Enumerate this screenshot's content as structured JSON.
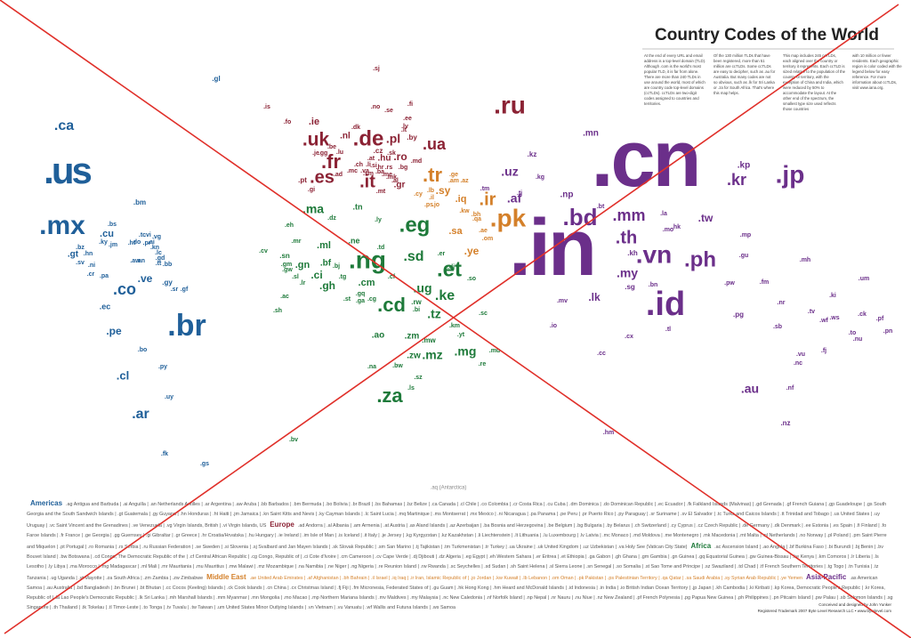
{
  "title": "Country Codes of the World",
  "intro": [
    "At the end of every URL and email address is a top-level domain (TLD). Although .com is the world's most popular TLD, it is far from alone. There are more than 240 TLDs in use around the world, most of which are country code top-level domains (ccTLDs). ccTLDs are two-digit codes assigned to countries and territories.",
    "Of the 130 million TLDs that have been registered, more than 51 million are ccTLDs. Some ccTLDs are easy to decipher, such as .au for Australia. But many codes are not so obvious, such as .lk for Sri Lanka or .za for South Africa. That's where this map helps.",
    "This map includes 245 ccTLDs, each aligned over the country or territory it represents. Each ccTLD is sized relative to the population of the country or territory, with the exception of China and India, which were reduced by 50% to accommodate the layout. At the other end of the spectrum, the smallest type size used reflects those countries",
    "with 10 million or fewer residents. Each geographic region is color coded with the legend below for easy reference. For more information about ccTLDs, visit www.iana.org."
  ],
  "antarctica": ".aq (Antarctica)",
  "regions": [
    {
      "name": "Americas",
      "color": "#1f5f99",
      "codes": [
        ".ca",
        ".us",
        ".mx",
        ".bm",
        ".bs",
        ".cu",
        ".ky",
        ".tc",
        ".vi",
        ".vg",
        ".jm",
        ".ht",
        ".do",
        ".pr",
        ".ai",
        ".kn",
        ".bz",
        ".gt",
        ".hn",
        ".sv",
        ".ni",
        ".cr",
        ".pa",
        ".aw",
        ".an",
        ".tt",
        ".lc",
        ".gd",
        ".bb",
        ".co",
        ".ve",
        ".gy",
        ".sr",
        ".gf",
        ".ec",
        ".br",
        ".pe",
        ".bo",
        ".py",
        ".cl",
        ".uy",
        ".ar",
        ".fk",
        ".gs",
        ".gl"
      ],
      "legend": ".ag Antigua and Barbuda | .ai Anguilla | .an Netherlands Antilles | .ar Argentina | .aw Aruba | .bb Barbados | .bm Bermuda | .bo Bolivia | .br Brazil | .bs Bahamas | .bz Belize | .ca Canada | .cl Chile | .co Colombia | .cr Costa Rica | .cu Cuba | .dm Dominica | .do Dominican Republic | .ec Ecuador | .fk Falkland Islands (Malvinas) | .gd Grenada | .gf French Guiana | .gp Guadeloupe | .gs South Georgia and the South Sandwich Islands | .gt Guatemala | .gy Guyana | .hn Honduras | .ht Haiti | .jm Jamaica | .kn Saint Kitts and Nevis | .ky Cayman Islands | .lc Saint Lucia | .mq Martinique | .ms Montserrat | .mx Mexico | .ni Nicaragua | .pa Panama | .pe Peru | .pr Puerto Rico | .py Paraguay | .sr Suriname | .sv El Salvador | .tc Turks and Caicos Islands | .tt Trinidad and Tobago | .us United States | .uy Uruguay | .vc Saint Vincent and the Grenadines | .ve Venezuela | .vg Virgin Islands, British | .vi Virgin Islands, US"
    },
    {
      "name": "Europe",
      "color": "#8b2234",
      "codes": [
        ".sj",
        ".is",
        ".fo",
        ".ie",
        ".no",
        ".se",
        ".fi",
        ".ee",
        ".lv",
        ".uk",
        ".dk",
        ".nl",
        ".de",
        ".pl",
        ".by",
        ".lt",
        ".ua",
        ".ru",
        ".be",
        ".lu",
        ".cz",
        ".sk",
        ".at",
        ".hu",
        ".ro",
        ".md",
        ".je",
        ".gg",
        ".fr",
        ".ch",
        ".li",
        ".si",
        ".hr",
        ".rs",
        ".bg",
        ".mc",
        ".va",
        ".ba",
        ".me",
        ".mk",
        ".al",
        ".gr",
        ".pt",
        ".es",
        ".it",
        ".sm",
        ".ad",
        ".gi",
        ".mt"
      ],
      "legend": ".ad Andorra | .al Albania | .am Armenia | .at Austria | .ax Aland Islands | .az Azerbaijan | .ba Bosnia and Herzegovina | .be Belgium | .bg Bulgaria | .by Belarus | .ch Switzerland | .cy Cyprus | .cz Czech Republic | .de Germany | .dk Denmark | .ee Estonia | .es Spain | .fi Finland | .fo Faroe Islands | .fr France | .ge Georgia | .gg Guernsey | .gi Gibraltar | .gr Greece | .hr Croatia/Hrvatska | .hu Hungary | .ie Ireland | .im Isle of Man | .is Iceland | .it Italy | .je Jersey | .kg Kyrgyzstan | .kz Kazakhstan | .li Liechtenstein | .lt Lithuania | .lu Luxembourg | .lv Latvia | .mc Monaco | .md Moldova | .me Montenegro | .mk Macedonia | .mt Malta | .nl Netherlands | .no Norway | .pl Poland | .pm Saint Pierre and Miquelon | .pt Portugal | .ro Romania | .rs Serbia | .ru Russian Federation | .se Sweden | .si Slovenia | .sj Svalbard and Jan Mayen Islands | .sk Slovak Republic | .sm San Marino | .tj Tajikistan | .tm Turkmenistan | .tr Turkey | .ua Ukraine | .uk United Kingdom | .uz Uzbekistan | .va Holy See (Vatican City State)"
    },
    {
      "name": "Africa",
      "color": "#1e7a3a",
      "codes": [
        ".ma",
        ".tn",
        ".dz",
        ".ly",
        ".eg",
        ".eh",
        ".mr",
        ".ml",
        ".ne",
        ".td",
        ".cv",
        ".sn",
        ".gm",
        ".gw",
        ".gn",
        ".bf",
        ".bj",
        ".sl",
        ".lr",
        ".ci",
        ".gh",
        ".tg",
        ".ng",
        ".cm",
        ".sd",
        ".er",
        ".dj",
        ".et",
        ".so",
        ".cf",
        ".gq",
        ".st",
        ".ga",
        ".cg",
        ".cd",
        ".ug",
        ".ke",
        ".rw",
        ".bi",
        ".tz",
        ".sh",
        ".ao",
        ".zm",
        ".mw",
        ".mz",
        ".zw",
        ".na",
        ".bw",
        ".mg",
        ".mu",
        ".re",
        ".sc",
        ".yt",
        ".km",
        ".ls",
        ".sz",
        ".za",
        ".ac",
        ".bv"
      ],
      "legend": ".ac Ascension Island | .ao Angola | .bf Burkina Faso | .bi Burundi | .bj Benin | .bv Bouvet Island | .bw Botswana | .cd Congo, The Democratic Republic of the | .cf Central African Republic | .cg Congo, Republic of | .ci Cote d'Ivoire | .cm Cameroon | .cv Cape Verde | .dj Djibouti | .dz Algeria | .eg Egypt | .eh Western Sahara | .er Eritrea | .et Ethiopia | .ga Gabon | .gh Ghana | .gm Gambia | .gn Guinea | .gq Equatorial Guinea | .gw Guinea-Bissau | .ke Kenya | .km Comoros | .lr Liberia | .ls Lesotho | .ly Libya | .ma Morocco | .mg Madagascar | .ml Mali | .mr Mauritania | .mu Mauritius | .mw Malawi | .mz Mozambique | .na Namibia | .ne Niger | .ng Nigeria | .re Reunion Island | .rw Rwanda | .sc Seychelles | .sd Sudan | .sh Saint Helena | .sl Sierra Leone | .sn Senegal | .so Somalia | .st Sao Tome and Principe | .sz Swaziland | .td Chad | .tf French Southern Territories | .tg Togo | .tn Tunisia | .tz Tanzania | .ug Uganda | .yt Mayotte | .za South Africa | .zm Zambia | .zw Zimbabwe"
    },
    {
      "name": "Middle East",
      "color": "#d4802a",
      "codes": [
        ".tr",
        ".ge",
        ".am",
        ".az",
        ".cy",
        ".lb",
        ".sy",
        ".il",
        ".ps",
        ".jo",
        ".iq",
        ".ir",
        ".kw",
        ".bh",
        ".qa",
        ".sa",
        ".ae",
        ".om",
        ".ye",
        ".pk"
      ],
      "legend": ".ae United Arab Emirates | .af Afghanistan | .bh Bahrain | .il Israel | .iq Iraq | .ir Iran, Islamic Republic of | .jo Jordan | .kw Kuwait | .lb Lebanon | .om Oman | .pk Pakistan | .ps Palestinian Territory | .qa Qatar | .sa Saudi Arabia | .sy Syrian Arab Republic | .ye Yemen"
    },
    {
      "name": "Asia-Pacific",
      "color": "#6b2f8a",
      "codes": [
        ".cn",
        ".in",
        ".jp",
        ".kr",
        ".kp",
        ".mn",
        ".kz",
        ".uz",
        ".tm",
        ".kg",
        ".tj",
        ".af",
        ".np",
        ".bt",
        ".bd",
        ".mm",
        ".la",
        ".hk",
        ".mo",
        ".tw",
        ".th",
        ".vn",
        ".ph",
        ".kh",
        ".lk",
        ".mv",
        ".my",
        ".sg",
        ".bn",
        ".id",
        ".tl",
        ".mp",
        ".gu",
        ".pw",
        ".fm",
        ".mh",
        ".um",
        ".ki",
        ".nr",
        ".pg",
        ".sb",
        ".tv",
        ".wf",
        ".ws",
        ".ck",
        ".pf",
        ".to",
        ".nu",
        ".pn",
        ".vu",
        ".fj",
        ".nc",
        ".au",
        ".nz",
        ".cx",
        ".cc",
        ".io",
        ".nf",
        ".hm"
      ],
      "legend": ".as American Samoa | .au Australia | .bd Bangladesh | .bn Brunei | .bt Bhutan | .cc Cocos (Keeling) Islands | .ck Cook Islands | .cn China | .cx Christmas Island | .fj Fiji | .fm Micronesia, Federated States of | .gu Guam | .hk Hong Kong | .hm Heard and McDonald Islands | .id Indonesia | .in India | .io British Indian Ocean Territory | .jp Japan | .kh Cambodia | .ki Kiribati | .kp Korea, Democratic People's Republic | .kr Korea, Republic of | .la Lao People's Democratic Republic | .lk Sri Lanka | .mh Marshall Islands | .mm Myanmar | .mn Mongolia | .mo Macao | .mp Northern Mariana Islands | .mv Maldives | .my Malaysia | .nc New Caledonia | .nf Norfolk Island | .np Nepal | .nr Nauru | .nu Niue | .nz New Zealand | .pf French Polynesia | .pg Papua New Guinea | .ph Philippines | .pn Pitcairn Island | .pw Palau | .sb Solomon Islands | .sg Singapore | .th Thailand | .tk Tokelau | .tl Timor-Leste | .to Tonga | .tv Tuvalu | .tw Taiwan | .um United States Minor Outlying Islands | .vn Vietnam | .vu Vanuatu | .wf Wallis and Futuna Islands | .ws Samoa"
    }
  ],
  "credits": [
    "Conceived and designed by John Yunker",
    "Registered Trademark 2007 Byte Level Research LLC • www.bytelevel.com"
  ]
}
